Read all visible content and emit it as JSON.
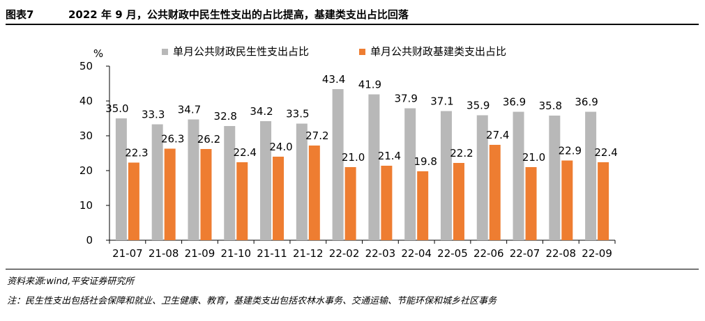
{
  "figure": {
    "label": "图表7",
    "title": "2022 年 9 月，公共财政中民生性支出的占比提高，基建类支出占比回落"
  },
  "footer": {
    "source": "资料来源:wind,平安证券研究所",
    "note": "注：民生性支出包括社会保障和就业、卫生健康、教育，基建类支出包括农林水事务、交通运输、节能环保和城乡社区事务"
  },
  "colors": {
    "series1": "#b8b8b8",
    "series2": "#ee7d31"
  },
  "chart_data": {
    "type": "bar",
    "unit_label": "%",
    "categories": [
      "21-07",
      "21-08",
      "21-09",
      "21-10",
      "21-11",
      "21-12",
      "22-02",
      "22-03",
      "22-04",
      "22-05",
      "22-06",
      "22-07",
      "22-08",
      "22-09"
    ],
    "series": [
      {
        "name": "单月公共财政民生性支出占比",
        "values": [
          35.0,
          33.3,
          34.7,
          32.8,
          34.2,
          33.5,
          43.4,
          41.9,
          37.9,
          37.1,
          35.9,
          36.9,
          35.8,
          36.9
        ],
        "labels": [
          "35.0",
          "33.3",
          "34.7",
          "32.8",
          "34.2",
          "33.5",
          "43.4",
          "41.9",
          "37.9",
          "37.1",
          "35.9",
          "36.9",
          "35.8",
          "36.9"
        ]
      },
      {
        "name": "单月公共财政基建类支出占比",
        "values": [
          22.3,
          26.3,
          26.2,
          22.4,
          24.0,
          27.2,
          21.0,
          21.4,
          19.8,
          22.2,
          27.4,
          21.0,
          22.9,
          22.4
        ],
        "labels": [
          "22.3",
          "26.3",
          "26.2",
          "22.4",
          "24.0",
          "27.2",
          "21.0",
          "21.4",
          "19.8",
          "22.2",
          "27.4",
          "21.0",
          "22.9",
          "22.4"
        ]
      }
    ],
    "ylim": [
      0,
      50
    ],
    "yticks": [
      "0",
      "10",
      "20",
      "30",
      "40",
      "50"
    ],
    "grid": false,
    "legend_position": "top-center"
  }
}
